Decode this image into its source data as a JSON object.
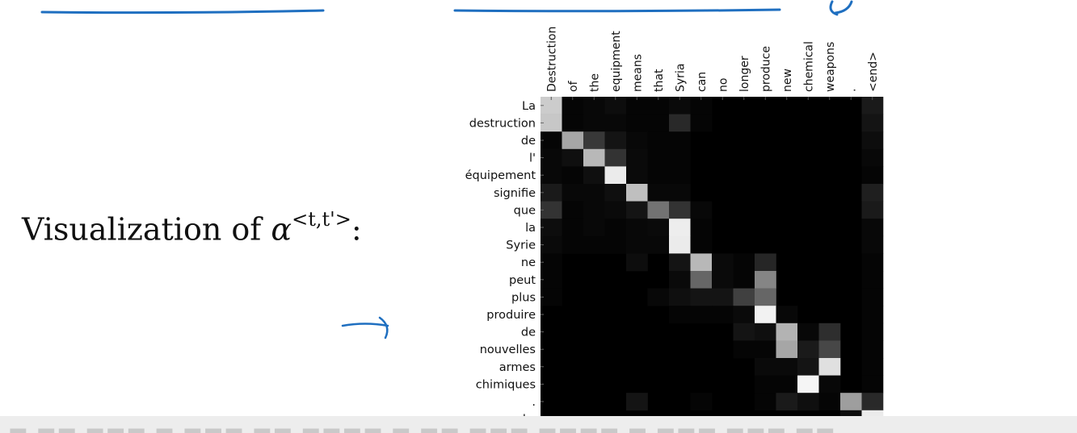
{
  "slide": {
    "title_prefix": "Visualization of ",
    "title_symbol": "α",
    "title_superscript": "<t,t'>",
    "title_suffix": ":"
  },
  "colors": {
    "ink": "#1f6fc0",
    "heatmap_background": "#000000",
    "label_text": "#111111"
  },
  "chart_data": {
    "type": "heatmap",
    "title": "",
    "colormap": "grayscale",
    "x": [
      "Destruction",
      "of",
      "the",
      "equipment",
      "means",
      "that",
      "Syria",
      "can",
      "no",
      "longer",
      "produce",
      "new",
      "chemical",
      "weapons",
      ".",
      "<end>"
    ],
    "y": [
      "La",
      "destruction",
      "de",
      "l'",
      "équipement",
      "signifie",
      "que",
      "la",
      "Syrie",
      "ne",
      "peut",
      "plus",
      "produire",
      "de",
      "nouvelles",
      "armes",
      "chimiques",
      ".",
      "<end>"
    ],
    "values": [
      [
        0.8,
        0.02,
        0.03,
        0.05,
        0.02,
        0.02,
        0.04,
        0.02,
        0.0,
        0.0,
        0.0,
        0.0,
        0.0,
        0.0,
        0.0,
        0.1
      ],
      [
        0.78,
        0.02,
        0.03,
        0.03,
        0.02,
        0.02,
        0.16,
        0.02,
        0.0,
        0.0,
        0.0,
        0.0,
        0.0,
        0.0,
        0.0,
        0.08
      ],
      [
        0.02,
        0.65,
        0.22,
        0.08,
        0.03,
        0.02,
        0.02,
        0.0,
        0.0,
        0.0,
        0.0,
        0.0,
        0.0,
        0.0,
        0.0,
        0.05
      ],
      [
        0.03,
        0.06,
        0.72,
        0.2,
        0.04,
        0.02,
        0.02,
        0.0,
        0.0,
        0.0,
        0.0,
        0.0,
        0.0,
        0.0,
        0.0,
        0.03
      ],
      [
        0.03,
        0.02,
        0.06,
        0.92,
        0.04,
        0.02,
        0.02,
        0.0,
        0.0,
        0.0,
        0.0,
        0.0,
        0.0,
        0.0,
        0.0,
        0.02
      ],
      [
        0.1,
        0.03,
        0.03,
        0.06,
        0.75,
        0.03,
        0.03,
        0.0,
        0.0,
        0.0,
        0.0,
        0.0,
        0.0,
        0.0,
        0.0,
        0.12
      ],
      [
        0.2,
        0.02,
        0.03,
        0.04,
        0.08,
        0.45,
        0.2,
        0.03,
        0.0,
        0.0,
        0.0,
        0.0,
        0.0,
        0.0,
        0.0,
        0.1
      ],
      [
        0.05,
        0.02,
        0.03,
        0.02,
        0.03,
        0.04,
        0.93,
        0.02,
        0.0,
        0.0,
        0.0,
        0.0,
        0.0,
        0.0,
        0.0,
        0.03
      ],
      [
        0.04,
        0.02,
        0.02,
        0.02,
        0.03,
        0.03,
        0.92,
        0.02,
        0.0,
        0.0,
        0.0,
        0.0,
        0.0,
        0.0,
        0.0,
        0.03
      ],
      [
        0.02,
        0.0,
        0.0,
        0.0,
        0.05,
        0.0,
        0.08,
        0.72,
        0.04,
        0.02,
        0.15,
        0.0,
        0.0,
        0.0,
        0.0,
        0.02
      ],
      [
        0.02,
        0.0,
        0.0,
        0.0,
        0.0,
        0.0,
        0.04,
        0.4,
        0.04,
        0.02,
        0.52,
        0.0,
        0.0,
        0.0,
        0.0,
        0.02
      ],
      [
        0.02,
        0.0,
        0.0,
        0.0,
        0.0,
        0.03,
        0.06,
        0.08,
        0.08,
        0.25,
        0.4,
        0.0,
        0.0,
        0.0,
        0.0,
        0.02
      ],
      [
        0.0,
        0.0,
        0.0,
        0.0,
        0.0,
        0.0,
        0.02,
        0.02,
        0.02,
        0.04,
        0.95,
        0.03,
        0.0,
        0.0,
        0.0,
        0.02
      ],
      [
        0.0,
        0.0,
        0.0,
        0.0,
        0.0,
        0.0,
        0.0,
        0.0,
        0.0,
        0.08,
        0.06,
        0.7,
        0.03,
        0.18,
        0.0,
        0.02
      ],
      [
        0.0,
        0.0,
        0.0,
        0.0,
        0.0,
        0.0,
        0.0,
        0.0,
        0.0,
        0.02,
        0.02,
        0.65,
        0.1,
        0.28,
        0.0,
        0.02
      ],
      [
        0.0,
        0.0,
        0.0,
        0.0,
        0.0,
        0.0,
        0.0,
        0.0,
        0.0,
        0.0,
        0.04,
        0.04,
        0.08,
        0.88,
        0.0,
        0.02
      ],
      [
        0.0,
        0.0,
        0.0,
        0.0,
        0.0,
        0.0,
        0.0,
        0.0,
        0.0,
        0.0,
        0.02,
        0.02,
        0.96,
        0.03,
        0.0,
        0.02
      ],
      [
        0.0,
        0.0,
        0.0,
        0.0,
        0.08,
        0.0,
        0.0,
        0.02,
        0.0,
        0.0,
        0.02,
        0.1,
        0.06,
        0.02,
        0.62,
        0.16
      ],
      [
        0.0,
        0.0,
        0.0,
        0.0,
        0.0,
        0.0,
        0.0,
        0.0,
        0.0,
        0.0,
        0.0,
        0.0,
        0.0,
        0.0,
        0.05,
        0.92
      ]
    ]
  }
}
